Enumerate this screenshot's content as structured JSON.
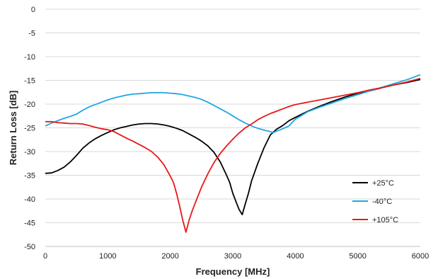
{
  "chart_data": {
    "type": "line",
    "title": "",
    "xlabel": "Frequency [MHz]",
    "ylabel": "Return Loss [dB]",
    "xlim": [
      0,
      6000
    ],
    "ylim": [
      -50,
      0
    ],
    "xticks": [
      0,
      1000,
      2000,
      3000,
      4000,
      5000,
      6000
    ],
    "yticks": [
      0,
      -5,
      -10,
      -15,
      -20,
      -25,
      -30,
      -35,
      -40,
      -45,
      -50
    ],
    "grid": true,
    "legend_position": "bottom-right",
    "series": [
      {
        "name": "+25°C",
        "color": "#000000",
        "points": [
          [
            0,
            -34.6
          ],
          [
            100,
            -34.5
          ],
          [
            200,
            -34
          ],
          [
            300,
            -33.3
          ],
          [
            400,
            -32.2
          ],
          [
            500,
            -30.8
          ],
          [
            600,
            -29.3
          ],
          [
            700,
            -28.2
          ],
          [
            800,
            -27.3
          ],
          [
            900,
            -26.6
          ],
          [
            1000,
            -26
          ],
          [
            1100,
            -25.4
          ],
          [
            1200,
            -25
          ],
          [
            1300,
            -24.7
          ],
          [
            1400,
            -24.4
          ],
          [
            1500,
            -24.2
          ],
          [
            1600,
            -24.1
          ],
          [
            1700,
            -24.1
          ],
          [
            1800,
            -24.2
          ],
          [
            1900,
            -24.4
          ],
          [
            2000,
            -24.7
          ],
          [
            2100,
            -25.1
          ],
          [
            2200,
            -25.6
          ],
          [
            2300,
            -26.3
          ],
          [
            2400,
            -27
          ],
          [
            2500,
            -27.8
          ],
          [
            2600,
            -28.8
          ],
          [
            2700,
            -30.2
          ],
          [
            2800,
            -32.2
          ],
          [
            2900,
            -35
          ],
          [
            2950,
            -36.5
          ],
          [
            3000,
            -38.8
          ],
          [
            3050,
            -40.5
          ],
          [
            3100,
            -42.2
          ],
          [
            3150,
            -43.3
          ],
          [
            3200,
            -41
          ],
          [
            3250,
            -38.8
          ],
          [
            3300,
            -36.2
          ],
          [
            3400,
            -32.5
          ],
          [
            3500,
            -29.2
          ],
          [
            3600,
            -26.5
          ],
          [
            3700,
            -25.3
          ],
          [
            3800,
            -24.5
          ],
          [
            3900,
            -23.5
          ],
          [
            4000,
            -22.8
          ],
          [
            4200,
            -21.5
          ],
          [
            4400,
            -20.4
          ],
          [
            4600,
            -19.4
          ],
          [
            4800,
            -18.5
          ],
          [
            5000,
            -17.7
          ],
          [
            5200,
            -17.2
          ],
          [
            5400,
            -16.5
          ],
          [
            5600,
            -15.9
          ],
          [
            5800,
            -15.4
          ],
          [
            6000,
            -14.8
          ]
        ]
      },
      {
        "name": "-40°C",
        "color": "#1FA8E0",
        "points": [
          [
            0,
            -24.6
          ],
          [
            100,
            -24
          ],
          [
            200,
            -23.5
          ],
          [
            300,
            -23
          ],
          [
            400,
            -22.6
          ],
          [
            500,
            -22.1
          ],
          [
            600,
            -21.3
          ],
          [
            700,
            -20.6
          ],
          [
            800,
            -20.1
          ],
          [
            900,
            -19.6
          ],
          [
            1000,
            -19.1
          ],
          [
            1100,
            -18.7
          ],
          [
            1200,
            -18.4
          ],
          [
            1300,
            -18.1
          ],
          [
            1400,
            -17.9
          ],
          [
            1500,
            -17.8
          ],
          [
            1600,
            -17.7
          ],
          [
            1700,
            -17.6
          ],
          [
            1800,
            -17.6
          ],
          [
            1900,
            -17.6
          ],
          [
            2000,
            -17.7
          ],
          [
            2100,
            -17.8
          ],
          [
            2200,
            -18
          ],
          [
            2300,
            -18.3
          ],
          [
            2400,
            -18.6
          ],
          [
            2500,
            -19
          ],
          [
            2600,
            -19.6
          ],
          [
            2700,
            -20.3
          ],
          [
            2800,
            -21
          ],
          [
            2900,
            -21.7
          ],
          [
            3000,
            -22.5
          ],
          [
            3100,
            -23.3
          ],
          [
            3200,
            -24
          ],
          [
            3300,
            -24.6
          ],
          [
            3400,
            -25.1
          ],
          [
            3500,
            -25.5
          ],
          [
            3600,
            -25.8
          ],
          [
            3650,
            -26
          ],
          [
            3700,
            -25.7
          ],
          [
            3800,
            -25.2
          ],
          [
            3900,
            -24.6
          ],
          [
            4000,
            -23.2
          ],
          [
            4200,
            -21.6
          ],
          [
            4400,
            -20.6
          ],
          [
            4600,
            -19.7
          ],
          [
            4800,
            -18.8
          ],
          [
            5000,
            -18
          ],
          [
            5200,
            -17.2
          ],
          [
            5400,
            -16.4
          ],
          [
            5600,
            -15.6
          ],
          [
            5800,
            -14.8
          ],
          [
            6000,
            -13.8
          ]
        ]
      },
      {
        "name": "+105°C",
        "color": "#E81818",
        "points": [
          [
            0,
            -23.7
          ],
          [
            100,
            -23.7
          ],
          [
            200,
            -23.9
          ],
          [
            300,
            -24
          ],
          [
            400,
            -24.1
          ],
          [
            500,
            -24.1
          ],
          [
            600,
            -24.2
          ],
          [
            700,
            -24.5
          ],
          [
            800,
            -24.9
          ],
          [
            900,
            -25.2
          ],
          [
            1000,
            -25.4
          ],
          [
            1100,
            -25.8
          ],
          [
            1200,
            -26.5
          ],
          [
            1300,
            -27.2
          ],
          [
            1400,
            -27.8
          ],
          [
            1500,
            -28.5
          ],
          [
            1600,
            -29.2
          ],
          [
            1700,
            -30
          ],
          [
            1800,
            -31.2
          ],
          [
            1900,
            -32.8
          ],
          [
            2000,
            -35.2
          ],
          [
            2050,
            -36.5
          ],
          [
            2100,
            -38.8
          ],
          [
            2150,
            -41.5
          ],
          [
            2200,
            -44.5
          ],
          [
            2250,
            -47
          ],
          [
            2300,
            -44.5
          ],
          [
            2350,
            -42.5
          ],
          [
            2400,
            -40.8
          ],
          [
            2500,
            -37.5
          ],
          [
            2600,
            -34.7
          ],
          [
            2700,
            -32.3
          ],
          [
            2800,
            -30.4
          ],
          [
            2900,
            -28.8
          ],
          [
            3000,
            -27.4
          ],
          [
            3100,
            -26.1
          ],
          [
            3200,
            -25
          ],
          [
            3300,
            -24.2
          ],
          [
            3400,
            -23.3
          ],
          [
            3500,
            -22.6
          ],
          [
            3600,
            -22
          ],
          [
            3700,
            -21.5
          ],
          [
            3800,
            -21
          ],
          [
            3900,
            -20.5
          ],
          [
            4000,
            -20.1
          ],
          [
            4200,
            -19.6
          ],
          [
            4400,
            -19.1
          ],
          [
            4600,
            -18.6
          ],
          [
            4800,
            -18.1
          ],
          [
            5000,
            -17.6
          ],
          [
            5200,
            -17
          ],
          [
            5400,
            -16.5
          ],
          [
            5600,
            -15.9
          ],
          [
            5800,
            -15.3
          ],
          [
            6000,
            -14.6
          ]
        ]
      }
    ]
  }
}
